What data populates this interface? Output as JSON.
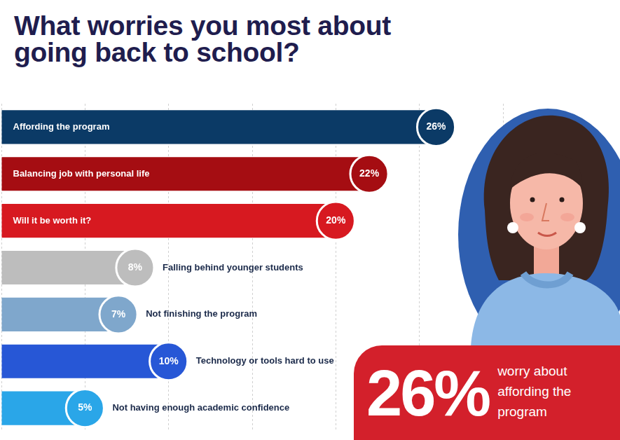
{
  "chart_data": {
    "type": "bar",
    "title": "What worries you most about going back to school?",
    "orientation": "horizontal",
    "categories": [
      "Affording the program",
      "Balancing job with personal life",
      "Will it be worth it?",
      "Falling behind younger students",
      "Not finishing the program",
      "Technology or tools hard to use",
      "Not having enough academic confidence"
    ],
    "values": [
      26,
      22,
      20,
      8,
      7,
      10,
      5
    ],
    "value_labels": [
      "26%",
      "22%",
      "20%",
      "8%",
      "7%",
      "10%",
      "5%"
    ],
    "colors": [
      "#0b3a66",
      "#a50d12",
      "#d71920",
      "#bdbdbd",
      "#7fa7cc",
      "#2757d6",
      "#2aa6e8"
    ],
    "xlim": [
      0,
      30
    ],
    "xticks": [
      0,
      5,
      10,
      15,
      20,
      25,
      30
    ],
    "grid": true,
    "tick_labels": false,
    "data_labels": true,
    "callout": {
      "highlight": "26%",
      "text": "worry about affording the program"
    }
  }
}
